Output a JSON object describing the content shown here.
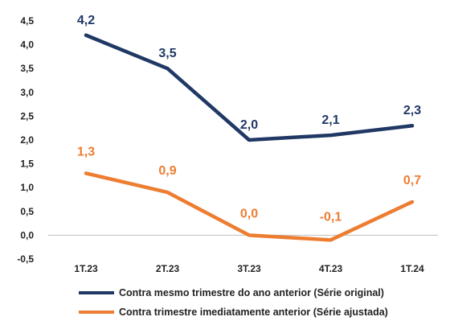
{
  "chart_data": {
    "type": "line",
    "title": "",
    "xlabel": "",
    "ylabel": "",
    "categories": [
      "1T.23",
      "2T.23",
      "3T.23",
      "4T.23",
      "1T.24"
    ],
    "ylim": [
      -0.5,
      4.5
    ],
    "yticks": [
      "4,5",
      "4,0",
      "3,5",
      "3,0",
      "2,5",
      "2,0",
      "1,5",
      "1,0",
      "0,5",
      "0,0",
      "-0,5"
    ],
    "ytick_values": [
      4.5,
      4.0,
      3.5,
      3.0,
      2.5,
      2.0,
      1.5,
      1.0,
      0.5,
      0.0,
      -0.5
    ],
    "grid": false,
    "legend_position": "bottom",
    "series": [
      {
        "name": "Contra mesmo trimestre do ano anterior (Série original)",
        "values": [
          4.2,
          3.5,
          2.0,
          2.1,
          2.3
        ],
        "labels": [
          "4,2",
          "3,5",
          "2,0",
          "2,1",
          "2,3"
        ],
        "color": "#1f3864"
      },
      {
        "name": "Contra trimestre imediatamente anterior (Série ajustada)",
        "values": [
          1.3,
          0.9,
          0.0,
          -0.1,
          0.7
        ],
        "labels": [
          "1,3",
          "0,9",
          "0,0",
          "-0,1",
          "0,7"
        ],
        "color": "#ed7d31"
      }
    ]
  }
}
